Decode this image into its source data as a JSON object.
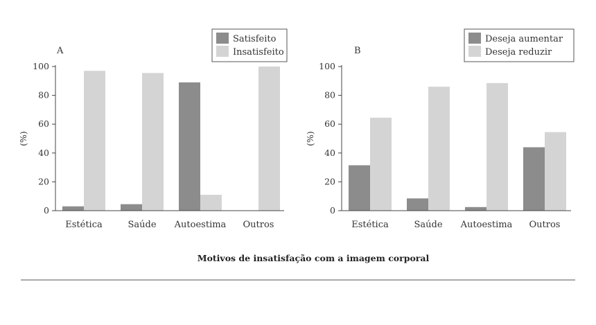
{
  "figure": {
    "caption": "Motivos de insatisfação com a imagem corporal"
  },
  "chart_data": [
    {
      "type": "bar",
      "panel": "A",
      "categories": [
        "Estética",
        "Saúde",
        "Autoestima",
        "Outros"
      ],
      "series": [
        {
          "name": "Satisfeito",
          "values": [
            3,
            4.5,
            89,
            0
          ],
          "color": "#8c8c8c"
        },
        {
          "name": "Insatisfeito",
          "values": [
            97,
            95.5,
            11,
            100
          ],
          "color": "#d4d4d4"
        }
      ],
      "ylabel": "(%)",
      "ylim": [
        0,
        100
      ],
      "yticks": [
        0,
        20,
        40,
        60,
        80,
        100
      ],
      "grid": false,
      "legend": "top-right"
    },
    {
      "type": "bar",
      "panel": "B",
      "categories": [
        "Estética",
        "Saúde",
        "Autoestima",
        "Outros"
      ],
      "series": [
        {
          "name": "Deseja aumentar",
          "values": [
            31.5,
            8.5,
            2.5,
            44
          ],
          "color": "#8c8c8c"
        },
        {
          "name": "Deseja reduzir",
          "values": [
            64.5,
            86,
            88.5,
            54.5
          ],
          "color": "#d4d4d4"
        }
      ],
      "ylabel": "(%)",
      "ylim": [
        0,
        100
      ],
      "yticks": [
        0,
        20,
        40,
        60,
        80,
        100
      ],
      "grid": false,
      "legend": "top-right"
    }
  ]
}
